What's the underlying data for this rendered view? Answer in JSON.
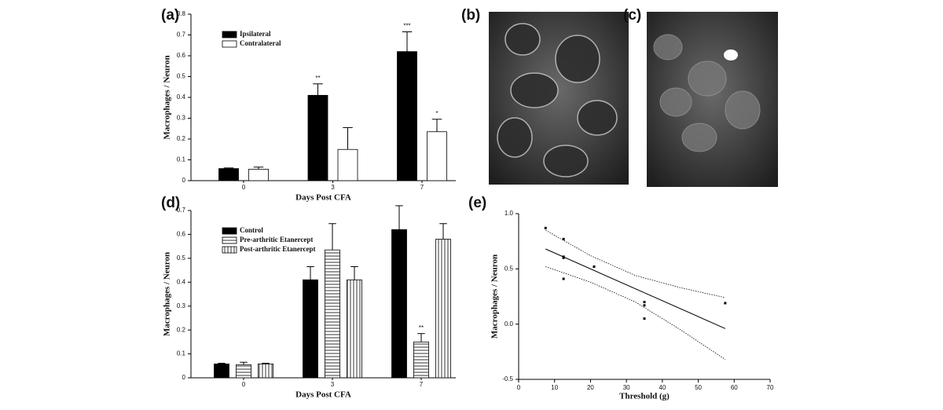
{
  "chart_data": [
    {
      "type": "bar",
      "panel": "(a)",
      "xlabel": "Days Post CFA",
      "ylabel": "Macrophages / Neuron",
      "categories": [
        "0",
        "3",
        "7"
      ],
      "series": [
        {
          "name": "Ipsilateral",
          "color": "#000000",
          "fill": "solid",
          "values": [
            0.058,
            0.41,
            0.62
          ],
          "errors": [
            0.003,
            0.055,
            0.095
          ],
          "significance": [
            null,
            "**",
            "***"
          ]
        },
        {
          "name": "Contralateral",
          "color": "#ffffff",
          "fill": "solid",
          "values": [
            0.055,
            0.15,
            0.235
          ],
          "errors": [
            0.01,
            0.105,
            0.06
          ],
          "significance": [
            null,
            null,
            "*"
          ]
        }
      ],
      "ylim": [
        0,
        0.8
      ],
      "yticks": [
        0,
        0.1,
        0.2,
        0.3,
        0.4,
        0.5,
        0.6,
        0.7,
        0.8
      ],
      "legend": "upper left"
    },
    {
      "type": "bar",
      "panel": "(d)",
      "xlabel": "Days Post CFA",
      "ylabel": "Macrophages / Neuron",
      "categories": [
        "0",
        "3",
        "7"
      ],
      "series": [
        {
          "name": "Control",
          "color": "#000000",
          "fill": "solid",
          "values": [
            0.058,
            0.41,
            0.62
          ],
          "errors": [
            0.003,
            0.055,
            0.1
          ],
          "significance": [
            null,
            null,
            null
          ]
        },
        {
          "name": "Pre-arthritic Etanercept",
          "color": "#ffffff",
          "fill": "horizontal",
          "values": [
            0.055,
            0.535,
            0.15
          ],
          "errors": [
            0.01,
            0.11,
            0.035
          ],
          "significance": [
            null,
            null,
            "**"
          ]
        },
        {
          "name": "Post-arthritic Etanercept",
          "color": "#ffffff",
          "fill": "vertical",
          "values": [
            0.058,
            0.41,
            0.58
          ],
          "errors": [
            0.003,
            0.055,
            0.065
          ],
          "significance": [
            null,
            null,
            null
          ]
        }
      ],
      "ylim": [
        0,
        0.7
      ],
      "yticks": [
        0,
        0.1,
        0.2,
        0.3,
        0.4,
        0.5,
        0.6,
        0.7
      ],
      "legend": "upper left"
    },
    {
      "type": "scatter",
      "panel": "(e)",
      "xlabel": "Threshold (g)",
      "ylabel": "Macrophages / Neuron",
      "x": [
        7.5,
        12.5,
        12.5,
        12.5,
        12.5,
        21,
        35,
        35,
        35,
        57.5
      ],
      "values": [
        0.87,
        0.77,
        0.61,
        0.6,
        0.41,
        0.52,
        0.2,
        0.17,
        0.05,
        0.19
      ],
      "color": "#000000",
      "fit": {
        "x": [
          7.5,
          57.5
        ],
        "values": [
          0.68,
          -0.04
        ]
      },
      "confidence_band": {
        "x": [
          7.5,
          20,
          32.5,
          45,
          57.5
        ],
        "upper": [
          0.85,
          0.62,
          0.44,
          0.33,
          0.24
        ],
        "lower": [
          0.52,
          0.38,
          0.2,
          -0.05,
          -0.32
        ]
      },
      "xlim": [
        0,
        70
      ],
      "xticks": [
        0,
        10,
        20,
        30,
        40,
        50,
        60,
        70
      ],
      "ylim": [
        -0.5,
        1.0
      ],
      "yticks": [
        {
          "value": -0.5,
          "label": "-0.5"
        },
        {
          "value": 0,
          "label": "0.0"
        },
        {
          "value": 0.5,
          "label": "0.5"
        },
        {
          "value": 1,
          "label": "1.0"
        }
      ]
    }
  ],
  "images": [
    {
      "panel": "(b)"
    },
    {
      "panel": "(c)"
    }
  ]
}
